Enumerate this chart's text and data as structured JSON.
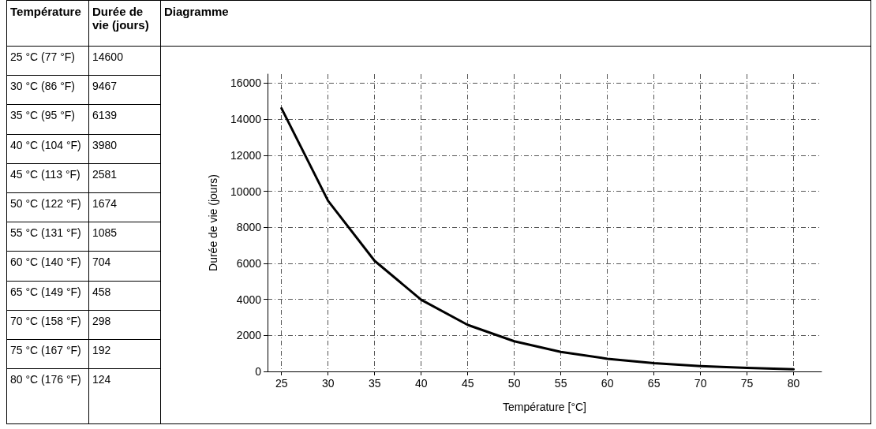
{
  "chart_data": {
    "type": "line",
    "title": "Diagramme",
    "xlabel": "Température [°C]",
    "ylabel": "Durée de vie (jours)",
    "annotations": [
      "Température",
      "Durée de vie (jours)",
      "25 °C (77 °F)",
      "30 °C (86 °F)",
      "35 °C (95 °F)",
      "40 °C (104 °F)",
      "45 °C (113 °F)",
      "50 °C (122 °F)",
      "55 °C (131 °F)",
      "60 °C (140 °F)",
      "65 °C (149 °F)",
      "70 °C (158 °F)",
      "75 °C (167 °F)",
      "80 °C (176 °F)",
      "14600",
      "9467",
      "6139",
      "3980",
      "2581",
      "1674",
      "1085",
      "704",
      "458",
      "298",
      "192",
      "124"
    ],
    "x": [
      25,
      30,
      35,
      40,
      45,
      50,
      55,
      60,
      65,
      70,
      75,
      80
    ],
    "series": [
      {
        "color": "#000000",
        "values": [
          14600,
          9467,
          6139,
          3980,
          2581,
          1674,
          1085,
          704,
          458,
          298,
          192,
          124
        ]
      }
    ],
    "xlim": [
      23.5,
      83
    ],
    "xticks": [
      25,
      30,
      35,
      40,
      45,
      50,
      55,
      60,
      65,
      70,
      75,
      80
    ],
    "ylim": [
      0,
      16500
    ],
    "yticks": [
      0,
      2000,
      4000,
      6000,
      8000,
      10000,
      12000,
      14000,
      16000
    ],
    "grid": true,
    "marker": "none",
    "line_style": "solid"
  }
}
